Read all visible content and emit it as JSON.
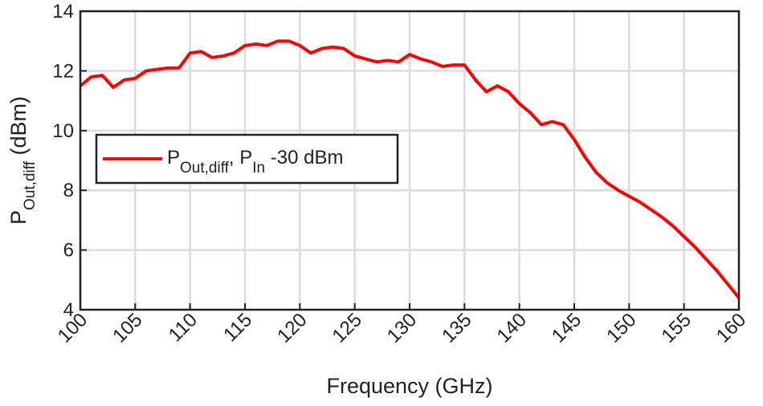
{
  "chart_data": {
    "type": "line",
    "xlabel": "Frequency (GHz)",
    "ylabel": [
      {
        "text": "P"
      },
      {
        "text": "Out,diff",
        "sub": true
      },
      {
        "text": " (dBm)"
      }
    ],
    "x": [
      100,
      101,
      102,
      103,
      104,
      105,
      106,
      107,
      108,
      109,
      110,
      111,
      112,
      113,
      114,
      115,
      116,
      117,
      118,
      119,
      120,
      121,
      122,
      123,
      124,
      125,
      126,
      127,
      128,
      129,
      130,
      131,
      132,
      133,
      134,
      135,
      136,
      137,
      138,
      139,
      140,
      141,
      142,
      143,
      144,
      145,
      146,
      147,
      148,
      149,
      150,
      151,
      152,
      153,
      154,
      155,
      156,
      157,
      158,
      159,
      160
    ],
    "series": [
      {
        "name": [
          {
            "text": "P"
          },
          {
            "text": "Out,diff",
            "sub": true
          },
          {
            "text": ", P"
          },
          {
            "text": "In",
            "sub": true
          },
          {
            "text": " -30 dBm"
          }
        ],
        "color": "#ff0000",
        "values": [
          11.5,
          11.8,
          11.85,
          11.45,
          11.7,
          11.75,
          12.0,
          12.05,
          12.1,
          12.1,
          12.6,
          12.65,
          12.45,
          12.5,
          12.6,
          12.85,
          12.9,
          12.85,
          13.0,
          13.0,
          12.85,
          12.6,
          12.75,
          12.8,
          12.75,
          12.5,
          12.4,
          12.3,
          12.35,
          12.3,
          12.55,
          12.4,
          12.3,
          12.15,
          12.2,
          12.2,
          11.7,
          11.3,
          11.5,
          11.3,
          10.9,
          10.6,
          10.2,
          10.3,
          10.2,
          9.7,
          9.1,
          8.6,
          8.25,
          8.0,
          7.8,
          7.6,
          7.35,
          7.1,
          6.8,
          6.45,
          6.1,
          5.7,
          5.3,
          4.85,
          4.4
        ]
      }
    ],
    "xlim": [
      100,
      160
    ],
    "xticks": [
      100,
      105,
      110,
      115,
      120,
      125,
      130,
      135,
      140,
      145,
      150,
      155,
      160
    ],
    "ylim": [
      4,
      14
    ],
    "yticks": [
      4,
      6,
      8,
      10,
      12,
      14
    ],
    "grid": true,
    "legend": "upper left"
  }
}
